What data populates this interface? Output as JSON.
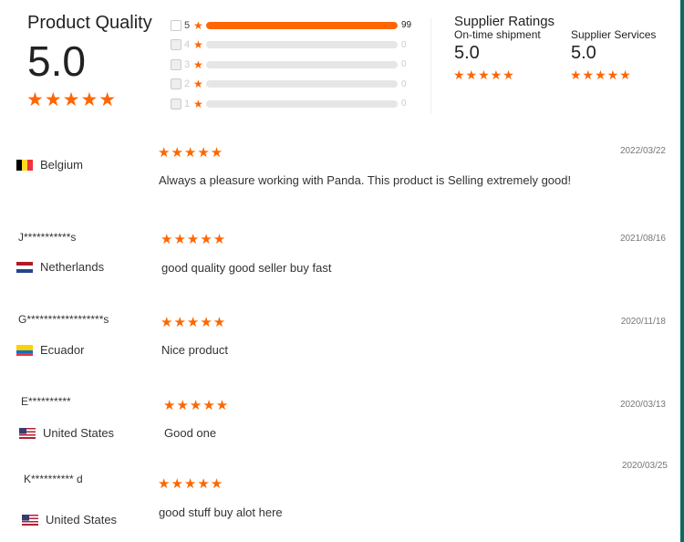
{
  "product_quality": {
    "title": "Product Quality",
    "score": "5.0",
    "stars": 5
  },
  "breakdown": [
    {
      "stars": "5",
      "count": "99",
      "fraction": 1.0
    },
    {
      "stars": "4",
      "count": "0",
      "fraction": 0
    },
    {
      "stars": "3",
      "count": "0",
      "fraction": 0
    },
    {
      "stars": "2",
      "count": "0",
      "fraction": 0
    },
    {
      "stars": "1",
      "count": "0",
      "fraction": 0
    }
  ],
  "supplier": {
    "title": "Supplier Ratings",
    "ontime": {
      "label": "On-time shipment",
      "score": "5.0",
      "stars": 5
    },
    "services": {
      "label": "Supplier Services",
      "score": "5.0",
      "stars": 5
    }
  },
  "reviews": [
    {
      "name": "",
      "country": "Belgium",
      "flag": "be",
      "date": "2022/03/22",
      "text": "Always a pleasure working with Panda. This product is Selling extremely good!",
      "stars": 5
    },
    {
      "name": "J***********s",
      "country": "Netherlands",
      "flag": "nl",
      "date": "2021/08/16",
      "text": "good quality good seller buy fast",
      "stars": 5
    },
    {
      "name": "G******************s",
      "country": "Ecuador",
      "flag": "ec",
      "date": "2020/11/18",
      "text": "Nice product",
      "stars": 5
    },
    {
      "name": "E**********",
      "country": "United States",
      "flag": "us",
      "date": "2020/03/13",
      "text": "Good one",
      "stars": 5
    },
    {
      "name": "K********** d",
      "country": "United States",
      "flag": "us",
      "date": "2020/03/25",
      "text": "good stuff buy alot here",
      "stars": 5
    }
  ],
  "colors": {
    "accent": "#ff6600",
    "track": "#e6e6e6"
  }
}
